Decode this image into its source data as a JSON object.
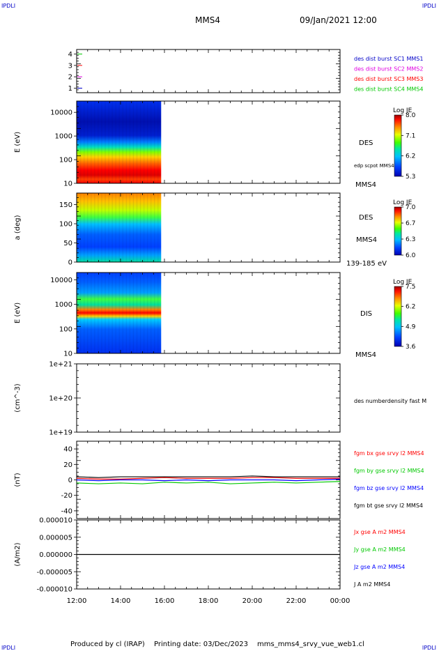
{
  "corner_label": "IPDLI",
  "header": {
    "spacecraft": "MMS4",
    "datetime": "09/Jan/2021 12:00"
  },
  "footer": {
    "produced_by": "Produced by cl (IRAP)",
    "printing_date": "Printing date: 03/Dec/2023",
    "filename": "mms_mms4_srvy_vue_web1.cl"
  },
  "time_axis": {
    "ticks": [
      "12:00",
      "14:00",
      "16:00",
      "18:00",
      "20:00",
      "22:00",
      "00:00"
    ],
    "data_end_hour": 15.85
  },
  "colors": {
    "red": "#ff0000",
    "green": "#00c800",
    "blue": "#0000ff",
    "magenta": "#e000e0",
    "black": "#000000",
    "axis": "#000000"
  },
  "chart_data": [
    {
      "type": "line",
      "panel": "burst-flags",
      "yticks": [
        "1",
        "2",
        "3",
        "4"
      ],
      "ylim": [
        0.6,
        4.4
      ],
      "legend": [
        {
          "label": "des dist burst SC1 MMS1",
          "color": "#0000c8"
        },
        {
          "label": "des dist burst SC2 MMS2",
          "color": "#e000e0"
        },
        {
          "label": "des dist burst SC3 MMS3",
          "color": "#ff0000"
        },
        {
          "label": "des dist burst SC4 MMS4",
          "color": "#00c800"
        }
      ],
      "series": [
        {
          "name": "des dist burst SC1 MMS1",
          "y": 1,
          "color": "#0000c8"
        },
        {
          "name": "des dist burst SC2 MMS2",
          "y": 2,
          "color": "#e000e0"
        },
        {
          "name": "des dist burst SC3 MMS3",
          "y": 3,
          "color": "#ff0000"
        },
        {
          "name": "des dist burst SC4 MMS4",
          "y": 4,
          "color": "#00c800"
        }
      ]
    },
    {
      "type": "heatmap",
      "panel": "des-energy",
      "ylabel": "E (eV)",
      "yticks": [
        "10000",
        "1000",
        "100",
        "10"
      ],
      "yscale": "log",
      "ylim": [
        10,
        30000
      ],
      "right_labels": [
        "DES",
        "edp scpot MMS4",
        "MMS4"
      ],
      "colorbar": {
        "title": "Log JE",
        "ticks": [
          "8.0",
          "7.1",
          "6.2",
          "5.3"
        ],
        "range": [
          5.3,
          8.0
        ]
      },
      "x_range_hours": [
        12.0,
        15.85
      ]
    },
    {
      "type": "heatmap",
      "panel": "des-pitch",
      "ylabel": "a (deg)",
      "yticks": [
        "150",
        "100",
        "50",
        "0"
      ],
      "ylim": [
        0,
        180
      ],
      "right_labels": [
        "DES",
        "MMS4",
        "139-185 eV"
      ],
      "colorbar": {
        "title": "Log JE",
        "ticks": [
          "7.0",
          "6.7",
          "6.3",
          "6.0"
        ],
        "range": [
          6.0,
          7.0
        ]
      },
      "x_range_hours": [
        12.0,
        15.85
      ]
    },
    {
      "type": "heatmap",
      "panel": "dis-energy",
      "ylabel": "E (eV)",
      "yticks": [
        "10000",
        "1000",
        "100",
        "10"
      ],
      "yscale": "log",
      "ylim": [
        10,
        20000
      ],
      "right_labels": [
        "DIS",
        "MMS4"
      ],
      "colorbar": {
        "title": "Log JE",
        "ticks": [
          "7.5",
          "6.2",
          "4.9",
          "3.6"
        ],
        "range": [
          3.6,
          7.5
        ]
      },
      "x_range_hours": [
        12.0,
        15.85
      ]
    },
    {
      "type": "line",
      "panel": "density",
      "ylabel": "(cm^-3)",
      "yticks": [
        "1e+21",
        "1e+20",
        "1e+19"
      ],
      "yscale": "log",
      "ylim": [
        1e+19,
        1e+21
      ],
      "legend": [
        {
          "label": "des numberdensity fast M",
          "color": "#000000"
        }
      ],
      "series": []
    },
    {
      "type": "line",
      "panel": "magnetic-field",
      "ylabel": "(nT)",
      "yticks": [
        "40",
        "20",
        "0",
        "-20",
        "-40"
      ],
      "ylim": [
        -50,
        50
      ],
      "legend": [
        {
          "label": "fgm bx gse srvy l2 MMS4",
          "color": "#ff0000"
        },
        {
          "label": "fgm by gse srvy l2 MMS4",
          "color": "#00c800"
        },
        {
          "label": "fgm bz gse srvy l2 MMS4",
          "color": "#0000ff"
        },
        {
          "label": "fgm bt gse srvy l2 MMS4",
          "color": "#000000"
        }
      ],
      "series": [
        {
          "name": "fgm bx gse srvy l2 MMS4",
          "color": "#ff0000",
          "x": [
            12,
            13,
            14,
            15,
            16,
            17,
            18,
            19,
            20,
            21,
            22,
            23,
            24
          ],
          "y": [
            2,
            1,
            1,
            2,
            3,
            2,
            2,
            2,
            3,
            3,
            2,
            2,
            2
          ]
        },
        {
          "name": "fgm by gse srvy l2 MMS4",
          "color": "#00c800",
          "x": [
            12,
            13,
            14,
            15,
            16,
            17,
            18,
            19,
            20,
            21,
            22,
            23,
            24
          ],
          "y": [
            -4,
            -5,
            -4,
            -5,
            -3,
            -4,
            -3,
            -5,
            -4,
            -3,
            -4,
            -3,
            -2
          ]
        },
        {
          "name": "fgm bz gse srvy l2 MMS4",
          "color": "#0000ff",
          "x": [
            12,
            13,
            14,
            15,
            16,
            17,
            18,
            19,
            20,
            21,
            22,
            23,
            24
          ],
          "y": [
            0,
            -1,
            0,
            0,
            -1,
            0,
            -1,
            0,
            0,
            0,
            -1,
            0,
            1
          ]
        },
        {
          "name": "fgm bt gse srvy l2 MMS4",
          "color": "#000000",
          "x": [
            12,
            13,
            14,
            15,
            16,
            17,
            18,
            19,
            20,
            21,
            22,
            23,
            24
          ],
          "y": [
            4,
            3,
            4,
            4,
            4,
            4,
            4,
            4,
            5,
            4,
            4,
            4,
            4
          ]
        }
      ]
    },
    {
      "type": "line",
      "panel": "current-density",
      "ylabel": "(A/m2)",
      "yticks": [
        "0.000010",
        "0.000005",
        "0.000000",
        "-0.000005",
        "-0.000010"
      ],
      "ylim": [
        -1e-05,
        1e-05
      ],
      "legend": [
        {
          "label": "Jx gse A m2 MMS4",
          "color": "#ff0000"
        },
        {
          "label": "Jy gse A m2 MMS4",
          "color": "#00c800"
        },
        {
          "label": "Jz gse A m2 MMS4",
          "color": "#0000ff"
        },
        {
          "label": "J A m2 MMS4",
          "color": "#000000"
        }
      ],
      "series": [
        {
          "name": "J A m2 MMS4",
          "color": "#000000",
          "x": [
            12,
            24
          ],
          "y": [
            0,
            0
          ]
        }
      ]
    }
  ]
}
